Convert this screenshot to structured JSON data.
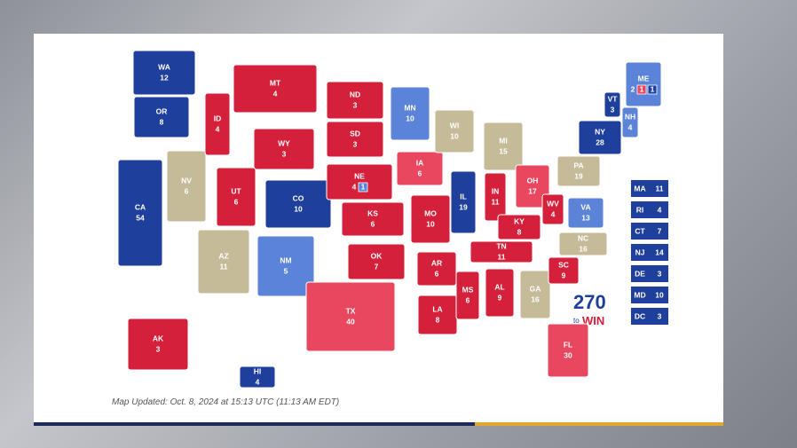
{
  "map": {
    "states": [
      {
        "abbr": "WA",
        "votes": 12,
        "color": "#1e3f9c"
      },
      {
        "abbr": "OR",
        "votes": 8,
        "color": "#1e3f9c"
      },
      {
        "abbr": "CA",
        "votes": 54,
        "color": "#1e3f9c"
      },
      {
        "abbr": "NV",
        "votes": 6,
        "color": "#c6bb98"
      },
      {
        "abbr": "ID",
        "votes": 4,
        "color": "#d4203a"
      },
      {
        "abbr": "MT",
        "votes": 4,
        "color": "#d4203a"
      },
      {
        "abbr": "WY",
        "votes": 3,
        "color": "#d4203a"
      },
      {
        "abbr": "UT",
        "votes": 6,
        "color": "#d4203a"
      },
      {
        "abbr": "CO",
        "votes": 10,
        "color": "#1e3f9c"
      },
      {
        "abbr": "AZ",
        "votes": 11,
        "color": "#c6bb98"
      },
      {
        "abbr": "NM",
        "votes": 5,
        "color": "#5b83d8"
      },
      {
        "abbr": "ND",
        "votes": 3,
        "color": "#d4203a"
      },
      {
        "abbr": "SD",
        "votes": 3,
        "color": "#d4203a"
      },
      {
        "abbr": "NE",
        "votes": 4,
        "color": "#d4203a",
        "districts": [
          {
            "votes": 1,
            "color": "#5b83d8"
          }
        ]
      },
      {
        "abbr": "KS",
        "votes": 6,
        "color": "#d4203a"
      },
      {
        "abbr": "OK",
        "votes": 7,
        "color": "#d4203a"
      },
      {
        "abbr": "TX",
        "votes": 40,
        "color": "#e9475f"
      },
      {
        "abbr": "MN",
        "votes": 10,
        "color": "#5b83d8"
      },
      {
        "abbr": "IA",
        "votes": 6,
        "color": "#e9475f"
      },
      {
        "abbr": "MO",
        "votes": 10,
        "color": "#d4203a"
      },
      {
        "abbr": "AR",
        "votes": 6,
        "color": "#d4203a"
      },
      {
        "abbr": "LA",
        "votes": 8,
        "color": "#d4203a"
      },
      {
        "abbr": "WI",
        "votes": 10,
        "color": "#c6bb98"
      },
      {
        "abbr": "IL",
        "votes": 19,
        "color": "#1e3f9c"
      },
      {
        "abbr": "MI",
        "votes": 15,
        "color": "#c6bb98"
      },
      {
        "abbr": "IN",
        "votes": 11,
        "color": "#d4203a"
      },
      {
        "abbr": "OH",
        "votes": 17,
        "color": "#e9475f"
      },
      {
        "abbr": "KY",
        "votes": 8,
        "color": "#d4203a"
      },
      {
        "abbr": "TN",
        "votes": 11,
        "color": "#d4203a"
      },
      {
        "abbr": "MS",
        "votes": 6,
        "color": "#d4203a"
      },
      {
        "abbr": "AL",
        "votes": 9,
        "color": "#d4203a"
      },
      {
        "abbr": "GA",
        "votes": 16,
        "color": "#c6bb98"
      },
      {
        "abbr": "SC",
        "votes": 9,
        "color": "#d4203a"
      },
      {
        "abbr": "NC",
        "votes": 16,
        "color": "#c6bb98"
      },
      {
        "abbr": "VA",
        "votes": 13,
        "color": "#5b83d8"
      },
      {
        "abbr": "WV",
        "votes": 4,
        "color": "#d4203a"
      },
      {
        "abbr": "PA",
        "votes": 19,
        "color": "#c6bb98"
      },
      {
        "abbr": "NY",
        "votes": 28,
        "color": "#1e3f9c"
      },
      {
        "abbr": "VT",
        "votes": 3,
        "color": "#1e3f9c"
      },
      {
        "abbr": "NH",
        "votes": 4,
        "color": "#5b83d8"
      },
      {
        "abbr": "ME",
        "votes": 2,
        "color": "#5b83d8",
        "districts": [
          {
            "votes": 1,
            "color": "#e9475f"
          },
          {
            "votes": 1,
            "color": "#1e3f9c"
          }
        ]
      },
      {
        "abbr": "FL",
        "votes": 30,
        "color": "#e9475f"
      },
      {
        "abbr": "AK",
        "votes": 3,
        "color": "#d4203a"
      },
      {
        "abbr": "HI",
        "votes": 4,
        "color": "#1e3f9c"
      }
    ],
    "small_states": [
      {
        "abbr": "MA",
        "votes": 11,
        "color": "#1e3f9c"
      },
      {
        "abbr": "RI",
        "votes": 4,
        "color": "#1e3f9c"
      },
      {
        "abbr": "CT",
        "votes": 7,
        "color": "#1e3f9c"
      },
      {
        "abbr": "NJ",
        "votes": 14,
        "color": "#1e3f9c"
      },
      {
        "abbr": "DE",
        "votes": 3,
        "color": "#1e3f9c"
      },
      {
        "abbr": "MD",
        "votes": 10,
        "color": "#1e3f9c"
      },
      {
        "abbr": "DC",
        "votes": 3,
        "color": "#1e3f9c"
      }
    ],
    "logo": {
      "number": "270",
      "to": "to",
      "win": "WIN"
    },
    "footer": "Map Updated: Oct. 8, 2024 at 15:13 UTC (11:13 AM EDT)"
  }
}
